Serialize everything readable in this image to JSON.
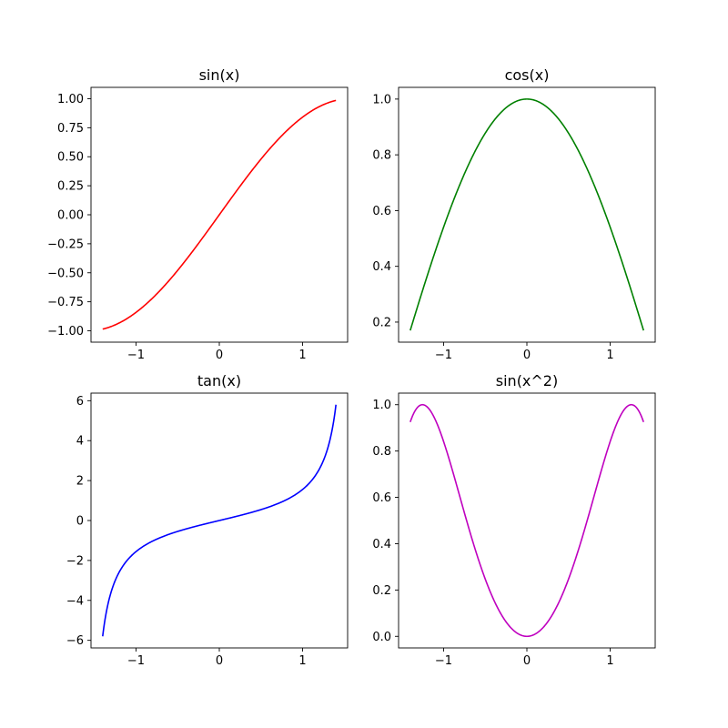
{
  "chart_data": [
    {
      "type": "line",
      "title": "sin(x)",
      "function": "sin",
      "color": "#ff0000",
      "x_range": [
        -1.4,
        1.4
      ],
      "xlim": [
        -1.54,
        1.54
      ],
      "ylim": [
        -1.098,
        1.098
      ],
      "xticks": [
        -1,
        0,
        1
      ],
      "xtick_labels": [
        "−1",
        "0",
        "1"
      ],
      "yticks": [
        -1.0,
        -0.75,
        -0.5,
        -0.25,
        0.0,
        0.25,
        0.5,
        0.75,
        1.0
      ],
      "ytick_labels": [
        "−1.00",
        "−0.75",
        "−0.50",
        "−0.25",
        "0.00",
        "0.25",
        "0.50",
        "0.75",
        "1.00"
      ]
    },
    {
      "type": "line",
      "title": "cos(x)",
      "function": "cos",
      "color": "#008000",
      "x_range": [
        -1.4,
        1.4
      ],
      "xlim": [
        -1.54,
        1.54
      ],
      "ylim": [
        0.128,
        1.042
      ],
      "xticks": [
        -1,
        0,
        1
      ],
      "xtick_labels": [
        "−1",
        "0",
        "1"
      ],
      "yticks": [
        0.2,
        0.4,
        0.6,
        0.8,
        1.0
      ],
      "ytick_labels": [
        "0.2",
        "0.4",
        "0.6",
        "0.8",
        "1.0"
      ]
    },
    {
      "type": "line",
      "title": "tan(x)",
      "function": "tan",
      "color": "#0000ff",
      "x_range": [
        -1.4,
        1.4
      ],
      "xlim": [
        -1.54,
        1.54
      ],
      "ylim": [
        -6.38,
        6.38
      ],
      "xticks": [
        -1,
        0,
        1
      ],
      "xtick_labels": [
        "−1",
        "0",
        "1"
      ],
      "yticks": [
        -6,
        -4,
        -2,
        0,
        2,
        4,
        6
      ],
      "ytick_labels": [
        "−6",
        "−4",
        "−2",
        "0",
        "2",
        "4",
        "6"
      ]
    },
    {
      "type": "line",
      "title": "sin(x^2)",
      "function": "sin_x_squared",
      "color": "#bf00bf",
      "x_range": [
        -1.4,
        1.4
      ],
      "xlim": [
        -1.54,
        1.54
      ],
      "ylim": [
        -0.05,
        1.05
      ],
      "xticks": [
        -1,
        0,
        1
      ],
      "xtick_labels": [
        "−1",
        "0",
        "1"
      ],
      "yticks": [
        0.0,
        0.2,
        0.4,
        0.6,
        0.8,
        1.0
      ],
      "ytick_labels": [
        "0.0",
        "0.2",
        "0.4",
        "0.6",
        "0.8",
        "1.0"
      ]
    }
  ]
}
